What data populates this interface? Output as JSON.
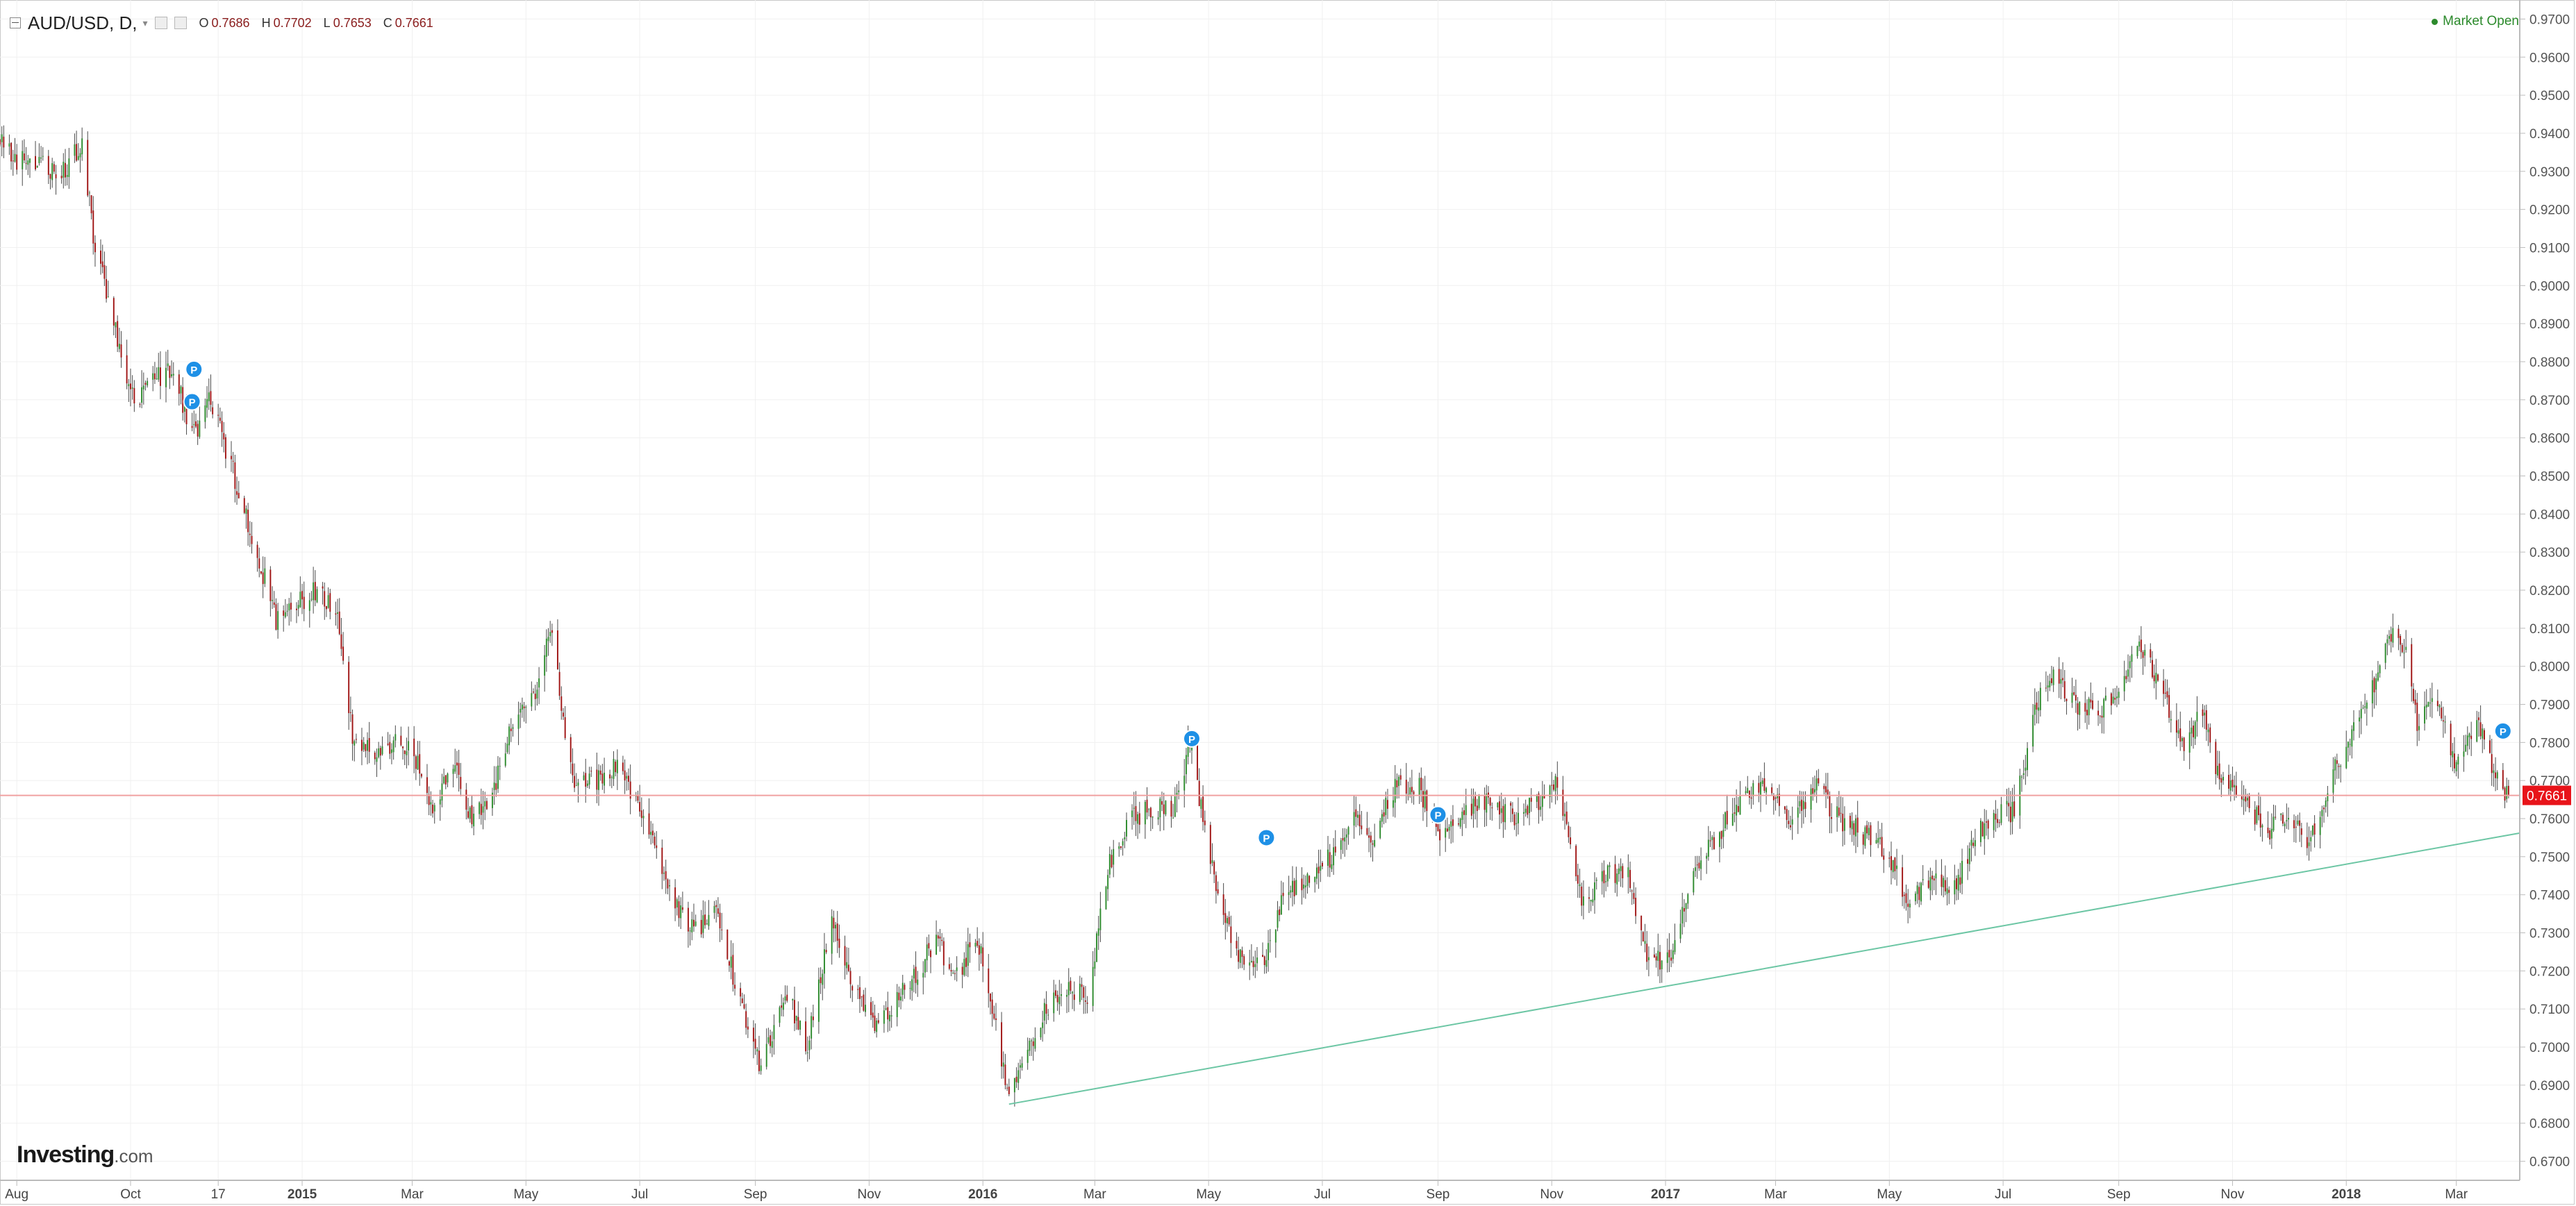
{
  "header": {
    "symbol": "AUD/USD, D,",
    "caret": "▾",
    "ohlc": [
      {
        "k": "O",
        "v": "0.7686"
      },
      {
        "k": "H",
        "v": "0.7702"
      },
      {
        "k": "L",
        "v": "0.7653"
      },
      {
        "k": "C",
        "v": "0.7661"
      }
    ]
  },
  "status": {
    "market_label": "Market Open"
  },
  "branding": {
    "logo_text": "Investing",
    "logo_suffix": ".com"
  },
  "colors": {
    "up": "#2e8b2e",
    "down": "#a01515",
    "wick": "#4a4a4a",
    "price_line": "#f0a0a0",
    "price_tag": "#e8141a",
    "trendline": "#6cc6a4",
    "marker": "#1e90e6",
    "grid": "#f0f0f0",
    "axis": "#bbbbbb",
    "status": "#2c8a2c"
  },
  "icons": [
    "collapse-icon",
    "settings-icon",
    "bar-style-icon",
    "status-dot-icon",
    "p-marker-icon"
  ],
  "chart_data": {
    "type": "candlestick",
    "title": "AUD/USD, D,",
    "ylim": [
      0.665,
      0.975
    ],
    "y_ticks": [
      "0.9700",
      "0.9600",
      "0.9500",
      "0.9400",
      "0.9300",
      "0.9200",
      "0.9100",
      "0.9000",
      "0.8900",
      "0.8800",
      "0.8700",
      "0.8600",
      "0.8500",
      "0.8400",
      "0.8300",
      "0.8200",
      "0.8100",
      "0.8000",
      "0.7900",
      "0.7800",
      "0.7700",
      "0.7600",
      "0.7500",
      "0.7400",
      "0.7300",
      "0.7200",
      "0.7100",
      "0.7000",
      "0.6900",
      "0.6800",
      "0.6700"
    ],
    "x_tick_labels": [
      {
        "label": "Aug",
        "bold": false
      },
      {
        "label": "Oct",
        "bold": false
      },
      {
        "label": "17",
        "bold": false
      },
      {
        "label": "2015",
        "bold": true
      },
      {
        "label": "Mar",
        "bold": false
      },
      {
        "label": "May",
        "bold": false
      },
      {
        "label": "Jul",
        "bold": false
      },
      {
        "label": "Sep",
        "bold": false
      },
      {
        "label": "Nov",
        "bold": false
      },
      {
        "label": "2016",
        "bold": true
      },
      {
        "label": "Mar",
        "bold": false
      },
      {
        "label": "May",
        "bold": false
      },
      {
        "label": "Jul",
        "bold": false
      },
      {
        "label": "Sep",
        "bold": false
      },
      {
        "label": "Nov",
        "bold": false
      },
      {
        "label": "2017",
        "bold": true
      },
      {
        "label": "Mar",
        "bold": false
      },
      {
        "label": "May",
        "bold": false
      },
      {
        "label": "Jul",
        "bold": false
      },
      {
        "label": "Sep",
        "bold": false
      },
      {
        "label": "Nov",
        "bold": false
      },
      {
        "label": "2018",
        "bold": true
      },
      {
        "label": "Mar",
        "bold": false
      }
    ],
    "current_price": 0.7661,
    "current_price_label": "0.7661",
    "series_close_anchors": [
      {
        "date": "2014-07-23",
        "close": 0.939
      },
      {
        "date": "2014-08-01",
        "close": 0.933
      },
      {
        "date": "2014-08-10",
        "close": 0.932
      },
      {
        "date": "2014-08-25",
        "close": 0.93
      },
      {
        "date": "2014-09-05",
        "close": 0.937
      },
      {
        "date": "2014-09-12",
        "close": 0.91
      },
      {
        "date": "2014-09-22",
        "close": 0.89
      },
      {
        "date": "2014-10-03",
        "close": 0.87
      },
      {
        "date": "2014-10-12",
        "close": 0.875
      },
      {
        "date": "2014-10-24",
        "close": 0.878
      },
      {
        "date": "2014-11-03",
        "close": 0.86
      },
      {
        "date": "2014-11-13",
        "close": 0.87
      },
      {
        "date": "2014-11-27",
        "close": 0.848
      },
      {
        "date": "2014-12-08",
        "close": 0.83
      },
      {
        "date": "2014-12-18",
        "close": 0.812
      },
      {
        "date": "2014-12-31",
        "close": 0.817
      },
      {
        "date": "2015-01-10",
        "close": 0.82
      },
      {
        "date": "2015-01-19",
        "close": 0.815
      },
      {
        "date": "2015-01-28",
        "close": 0.782
      },
      {
        "date": "2015-02-08",
        "close": 0.778
      },
      {
        "date": "2015-02-19",
        "close": 0.78
      },
      {
        "date": "2015-03-02",
        "close": 0.777
      },
      {
        "date": "2015-03-13",
        "close": 0.762
      },
      {
        "date": "2015-03-23",
        "close": 0.776
      },
      {
        "date": "2015-04-02",
        "close": 0.759
      },
      {
        "date": "2015-04-14",
        "close": 0.768
      },
      {
        "date": "2015-04-26",
        "close": 0.788
      },
      {
        "date": "2015-05-08",
        "close": 0.795
      },
      {
        "date": "2015-05-14",
        "close": 0.81
      },
      {
        "date": "2015-05-26",
        "close": 0.77
      },
      {
        "date": "2015-06-08",
        "close": 0.77
      },
      {
        "date": "2015-06-20",
        "close": 0.774
      },
      {
        "date": "2015-06-30",
        "close": 0.764
      },
      {
        "date": "2015-07-10",
        "close": 0.75
      },
      {
        "date": "2015-07-20",
        "close": 0.738
      },
      {
        "date": "2015-07-31",
        "close": 0.73
      },
      {
        "date": "2015-08-11",
        "close": 0.736
      },
      {
        "date": "2015-08-24",
        "close": 0.712
      },
      {
        "date": "2015-09-04",
        "close": 0.695
      },
      {
        "date": "2015-09-17",
        "close": 0.715
      },
      {
        "date": "2015-09-29",
        "close": 0.7
      },
      {
        "date": "2015-10-12",
        "close": 0.735
      },
      {
        "date": "2015-10-23",
        "close": 0.716
      },
      {
        "date": "2015-11-05",
        "close": 0.706
      },
      {
        "date": "2015-11-16",
        "close": 0.712
      },
      {
        "date": "2015-11-27",
        "close": 0.72
      },
      {
        "date": "2015-12-07",
        "close": 0.728
      },
      {
        "date": "2015-12-17",
        "close": 0.718
      },
      {
        "date": "2015-12-29",
        "close": 0.729
      },
      {
        "date": "2016-01-08",
        "close": 0.705
      },
      {
        "date": "2016-01-15",
        "close": 0.686
      },
      {
        "date": "2016-01-22",
        "close": 0.697
      },
      {
        "date": "2016-02-04",
        "close": 0.71
      },
      {
        "date": "2016-02-16",
        "close": 0.715
      },
      {
        "date": "2016-02-26",
        "close": 0.713
      },
      {
        "date": "2016-03-09",
        "close": 0.748
      },
      {
        "date": "2016-03-21",
        "close": 0.76
      },
      {
        "date": "2016-04-01",
        "close": 0.763
      },
      {
        "date": "2016-04-12",
        "close": 0.762
      },
      {
        "date": "2016-04-21",
        "close": 0.78
      },
      {
        "date": "2016-04-28",
        "close": 0.76
      },
      {
        "date": "2016-05-06",
        "close": 0.74
      },
      {
        "date": "2016-05-19",
        "close": 0.722
      },
      {
        "date": "2016-05-31",
        "close": 0.722
      },
      {
        "date": "2016-06-10",
        "close": 0.74
      },
      {
        "date": "2016-06-23",
        "close": 0.745
      },
      {
        "date": "2016-07-05",
        "close": 0.75
      },
      {
        "date": "2016-07-16",
        "close": 0.76
      },
      {
        "date": "2016-07-28",
        "close": 0.755
      },
      {
        "date": "2016-08-10",
        "close": 0.77
      },
      {
        "date": "2016-08-22",
        "close": 0.768
      },
      {
        "date": "2016-09-02",
        "close": 0.756
      },
      {
        "date": "2016-09-09",
        "close": 0.758
      },
      {
        "date": "2016-09-22",
        "close": 0.765
      },
      {
        "date": "2016-10-04",
        "close": 0.762
      },
      {
        "date": "2016-10-14",
        "close": 0.76
      },
      {
        "date": "2016-10-26",
        "close": 0.765
      },
      {
        "date": "2016-11-04",
        "close": 0.77
      },
      {
        "date": "2016-11-11",
        "close": 0.752
      },
      {
        "date": "2016-11-18",
        "close": 0.738
      },
      {
        "date": "2016-11-30",
        "close": 0.745
      },
      {
        "date": "2016-12-12",
        "close": 0.746
      },
      {
        "date": "2016-12-23",
        "close": 0.721
      },
      {
        "date": "2017-01-04",
        "close": 0.725
      },
      {
        "date": "2017-01-16",
        "close": 0.745
      },
      {
        "date": "2017-01-30",
        "close": 0.757
      },
      {
        "date": "2017-02-13",
        "close": 0.765
      },
      {
        "date": "2017-02-24",
        "close": 0.769
      },
      {
        "date": "2017-03-09",
        "close": 0.757
      },
      {
        "date": "2017-03-21",
        "close": 0.769
      },
      {
        "date": "2017-04-04",
        "close": 0.76
      },
      {
        "date": "2017-04-17",
        "close": 0.756
      },
      {
        "date": "2017-05-01",
        "close": 0.75
      },
      {
        "date": "2017-05-11",
        "close": 0.738
      },
      {
        "date": "2017-05-24",
        "close": 0.745
      },
      {
        "date": "2017-06-05",
        "close": 0.742
      },
      {
        "date": "2017-06-19",
        "close": 0.757
      },
      {
        "date": "2017-06-30",
        "close": 0.762
      },
      {
        "date": "2017-07-07",
        "close": 0.762
      },
      {
        "date": "2017-07-19",
        "close": 0.79
      },
      {
        "date": "2017-07-27",
        "close": 0.798
      },
      {
        "date": "2017-08-09",
        "close": 0.79
      },
      {
        "date": "2017-08-22",
        "close": 0.788
      },
      {
        "date": "2017-09-05",
        "close": 0.795
      },
      {
        "date": "2017-09-11",
        "close": 0.808
      },
      {
        "date": "2017-09-22",
        "close": 0.795
      },
      {
        "date": "2017-10-05",
        "close": 0.78
      },
      {
        "date": "2017-10-16",
        "close": 0.788
      },
      {
        "date": "2017-10-25",
        "close": 0.77
      },
      {
        "date": "2017-11-07",
        "close": 0.766
      },
      {
        "date": "2017-11-20",
        "close": 0.756
      },
      {
        "date": "2017-12-01",
        "close": 0.762
      },
      {
        "date": "2017-12-11",
        "close": 0.753
      },
      {
        "date": "2017-12-22",
        "close": 0.768
      },
      {
        "date": "2018-01-05",
        "close": 0.785
      },
      {
        "date": "2018-01-16",
        "close": 0.795
      },
      {
        "date": "2018-01-25",
        "close": 0.808
      },
      {
        "date": "2018-02-01",
        "close": 0.805
      },
      {
        "date": "2018-02-09",
        "close": 0.782
      },
      {
        "date": "2018-02-16",
        "close": 0.793
      },
      {
        "date": "2018-02-28",
        "close": 0.776
      },
      {
        "date": "2018-03-12",
        "close": 0.786
      },
      {
        "date": "2018-03-23",
        "close": 0.77
      },
      {
        "date": "2018-03-29",
        "close": 0.7661
      }
    ],
    "trendline": {
      "start": {
        "date": "2016-01-15",
        "price": 0.685
      },
      "end": {
        "date": "2018-04-04",
        "price": 0.7562
      }
    },
    "p_markers": [
      {
        "date": "2014-11-04",
        "price": 0.878
      },
      {
        "date": "2014-11-03",
        "price": 0.8695
      },
      {
        "date": "2016-04-22",
        "price": 0.781
      },
      {
        "date": "2016-06-01",
        "price": 0.755
      },
      {
        "date": "2016-09-01",
        "price": 0.761
      },
      {
        "date": "2018-03-26",
        "price": 0.783
      }
    ],
    "marker_label": "P",
    "grid": true
  }
}
